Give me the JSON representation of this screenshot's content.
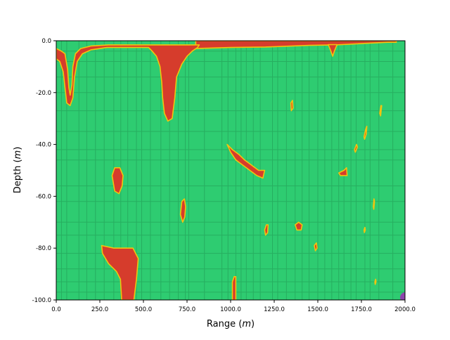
{
  "chart_data": {
    "type": "heatmap",
    "title": "",
    "xlabel": "Range (m)",
    "ylabel": "Depth (m)",
    "xlabel_main": "Range (",
    "xlabel_unit": "m",
    "xlabel_close": ")",
    "ylabel_main": "Depth (",
    "ylabel_unit": "m",
    "ylabel_close": ")",
    "xlim": [
      0,
      2000
    ],
    "ylim": [
      -100,
      0
    ],
    "x_ticks": [
      0,
      250,
      500,
      750,
      1000,
      1250,
      1500,
      1750,
      2000
    ],
    "x_tick_labels": [
      "0.0",
      "250.0",
      "500.0",
      "750.0",
      "1000.0",
      "1250.0",
      "1500.0",
      "1750.0",
      "2000.0"
    ],
    "y_ticks": [
      0,
      -20,
      -40,
      -60,
      -80,
      -100
    ],
    "y_tick_labels": [
      "0.0",
      "-20.0",
      "-40.0",
      "-60.0",
      "-80.0",
      "-100.0"
    ],
    "colors": {
      "background": "#2ecc71",
      "grid_line": "#27ae60",
      "feature_fill": "#d63c2c",
      "feature_edge": "#f1c40f",
      "marker": "#8e44ad"
    },
    "features": [
      {
        "name": "top-strip",
        "points": [
          [
            800,
            -3
          ],
          [
            1000,
            -2.6
          ],
          [
            1200,
            -2.4
          ],
          [
            1450,
            -1.8
          ],
          [
            1600,
            -1.6
          ],
          [
            1900,
            -0.6
          ],
          [
            1950,
            -0.6
          ],
          [
            1950,
            0
          ],
          [
            800,
            0
          ]
        ]
      },
      {
        "name": "left-u-loop",
        "points": [
          [
            0,
            -7
          ],
          [
            20,
            -8
          ],
          [
            40,
            -12
          ],
          [
            50,
            -18
          ],
          [
            60,
            -24
          ],
          [
            80,
            -25
          ],
          [
            95,
            -22
          ],
          [
            105,
            -14
          ],
          [
            120,
            -8
          ],
          [
            150,
            -5
          ],
          [
            200,
            -3.5
          ],
          [
            290,
            -2.6
          ],
          [
            390,
            -2.6
          ],
          [
            500,
            -2.6
          ],
          [
            530,
            -2.6
          ],
          [
            550,
            -4
          ],
          [
            575,
            -6
          ],
          [
            595,
            -10
          ],
          [
            605,
            -16
          ],
          [
            610,
            -22
          ],
          [
            620,
            -28
          ],
          [
            640,
            -31
          ],
          [
            665,
            -30
          ],
          [
            680,
            -22
          ],
          [
            690,
            -14
          ],
          [
            720,
            -9
          ],
          [
            750,
            -6
          ],
          [
            780,
            -4
          ],
          [
            810,
            -2.6
          ],
          [
            820,
            -1.6
          ],
          [
            500,
            -1.6
          ],
          [
            300,
            -1.6
          ],
          [
            200,
            -2
          ],
          [
            140,
            -3
          ],
          [
            110,
            -5
          ],
          [
            95,
            -10
          ],
          [
            90,
            -17
          ],
          [
            80,
            -21
          ],
          [
            72,
            -18
          ],
          [
            65,
            -11
          ],
          [
            50,
            -5
          ],
          [
            30,
            -4
          ],
          [
            0,
            -3
          ]
        ]
      },
      {
        "name": "dip-1600",
        "points": [
          [
            1560,
            -1.5
          ],
          [
            1575,
            -4
          ],
          [
            1585,
            -6
          ],
          [
            1595,
            -4
          ],
          [
            1610,
            -1.5
          ]
        ]
      },
      {
        "name": "mid-oval-350",
        "points": [
          [
            320,
            -52
          ],
          [
            335,
            -49
          ],
          [
            365,
            -49
          ],
          [
            383,
            -52
          ],
          [
            378,
            -56
          ],
          [
            360,
            -59
          ],
          [
            335,
            -58
          ]
        ]
      },
      {
        "name": "oval-730",
        "points": [
          [
            712,
            -67
          ],
          [
            720,
            -62
          ],
          [
            735,
            -61
          ],
          [
            742,
            -64
          ],
          [
            737,
            -68
          ],
          [
            725,
            -70
          ]
        ]
      },
      {
        "name": "diagonal-streak",
        "points": [
          [
            980,
            -40
          ],
          [
            1010,
            -42
          ],
          [
            1050,
            -44
          ],
          [
            1080,
            -46
          ],
          [
            1120,
            -48
          ],
          [
            1160,
            -50
          ],
          [
            1195,
            -50
          ],
          [
            1185,
            -53
          ],
          [
            1150,
            -52
          ],
          [
            1110,
            -50
          ],
          [
            1070,
            -48
          ],
          [
            1030,
            -46
          ],
          [
            1000,
            -43
          ]
        ]
      },
      {
        "name": "bottom-arch",
        "points": [
          [
            260,
            -79
          ],
          [
            330,
            -80
          ],
          [
            440,
            -80
          ],
          [
            470,
            -84
          ],
          [
            460,
            -92
          ],
          [
            445,
            -100
          ],
          [
            375,
            -100
          ],
          [
            368,
            -92
          ],
          [
            345,
            -89
          ],
          [
            300,
            -86
          ],
          [
            265,
            -82
          ]
        ]
      },
      {
        "name": "small-1210",
        "points": [
          [
            1195,
            -73
          ],
          [
            1205,
            -71
          ],
          [
            1215,
            -71
          ],
          [
            1212,
            -74
          ],
          [
            1200,
            -75
          ]
        ]
      },
      {
        "name": "small-1020",
        "points": [
          [
            1010,
            -93
          ],
          [
            1020,
            -91
          ],
          [
            1030,
            -91
          ],
          [
            1030,
            -100
          ],
          [
            1010,
            -100
          ]
        ]
      },
      {
        "name": "small-1350",
        "points": [
          [
            1345,
            -24
          ],
          [
            1355,
            -23
          ],
          [
            1358,
            -26
          ],
          [
            1348,
            -27
          ]
        ]
      },
      {
        "name": "small-1390",
        "points": [
          [
            1370,
            -71
          ],
          [
            1390,
            -70
          ],
          [
            1410,
            -71
          ],
          [
            1405,
            -73
          ],
          [
            1380,
            -73
          ]
        ]
      },
      {
        "name": "small-1490",
        "points": [
          [
            1480,
            -79
          ],
          [
            1492,
            -78
          ],
          [
            1496,
            -80
          ],
          [
            1486,
            -81
          ]
        ]
      },
      {
        "name": "small-1660",
        "points": [
          [
            1620,
            -51
          ],
          [
            1650,
            -50
          ],
          [
            1665,
            -49
          ],
          [
            1668,
            -52
          ],
          [
            1630,
            -52
          ]
        ]
      },
      {
        "name": "dash-1770",
        "points": [
          [
            1765,
            -37
          ],
          [
            1775,
            -34
          ],
          [
            1781,
            -33
          ],
          [
            1778,
            -36
          ],
          [
            1768,
            -38
          ]
        ]
      },
      {
        "name": "dash-1720",
        "points": [
          [
            1710,
            -42
          ],
          [
            1722,
            -40
          ],
          [
            1727,
            -41
          ],
          [
            1715,
            -43
          ]
        ]
      },
      {
        "name": "dash-1860",
        "points": [
          [
            1855,
            -28
          ],
          [
            1862,
            -25
          ],
          [
            1866,
            -25
          ],
          [
            1860,
            -29
          ]
        ]
      },
      {
        "name": "dash-1820",
        "points": [
          [
            1818,
            -64
          ],
          [
            1822,
            -61
          ],
          [
            1825,
            -62
          ],
          [
            1821,
            -65
          ]
        ]
      },
      {
        "name": "dash-1770b",
        "points": [
          [
            1765,
            -73
          ],
          [
            1770,
            -72
          ],
          [
            1772,
            -73
          ],
          [
            1767,
            -74
          ]
        ]
      },
      {
        "name": "dash-1830",
        "points": [
          [
            1827,
            -93
          ],
          [
            1832,
            -92
          ],
          [
            1834,
            -93
          ],
          [
            1829,
            -94
          ]
        ]
      }
    ],
    "grid_vertical_x": [
      30,
      60,
      130,
      175,
      225,
      275,
      330,
      370,
      410,
      460,
      490,
      540,
      600,
      650,
      700,
      740,
      760,
      850,
      950,
      985,
      1030,
      1060,
      1090,
      1130,
      1170,
      1240,
      1270,
      1320,
      1370,
      1410,
      1450,
      1500,
      1540,
      1580,
      1620,
      1650,
      1690,
      1720,
      1770,
      1800,
      1850,
      1930
    ],
    "grid_horizontal_y": [
      -4,
      -8,
      -14,
      -20,
      -27,
      -35,
      -42,
      -46,
      -56,
      -62,
      -70,
      -75,
      -82,
      -88,
      -93,
      -97
    ],
    "marker": {
      "x": 2000,
      "y": -99
    }
  }
}
